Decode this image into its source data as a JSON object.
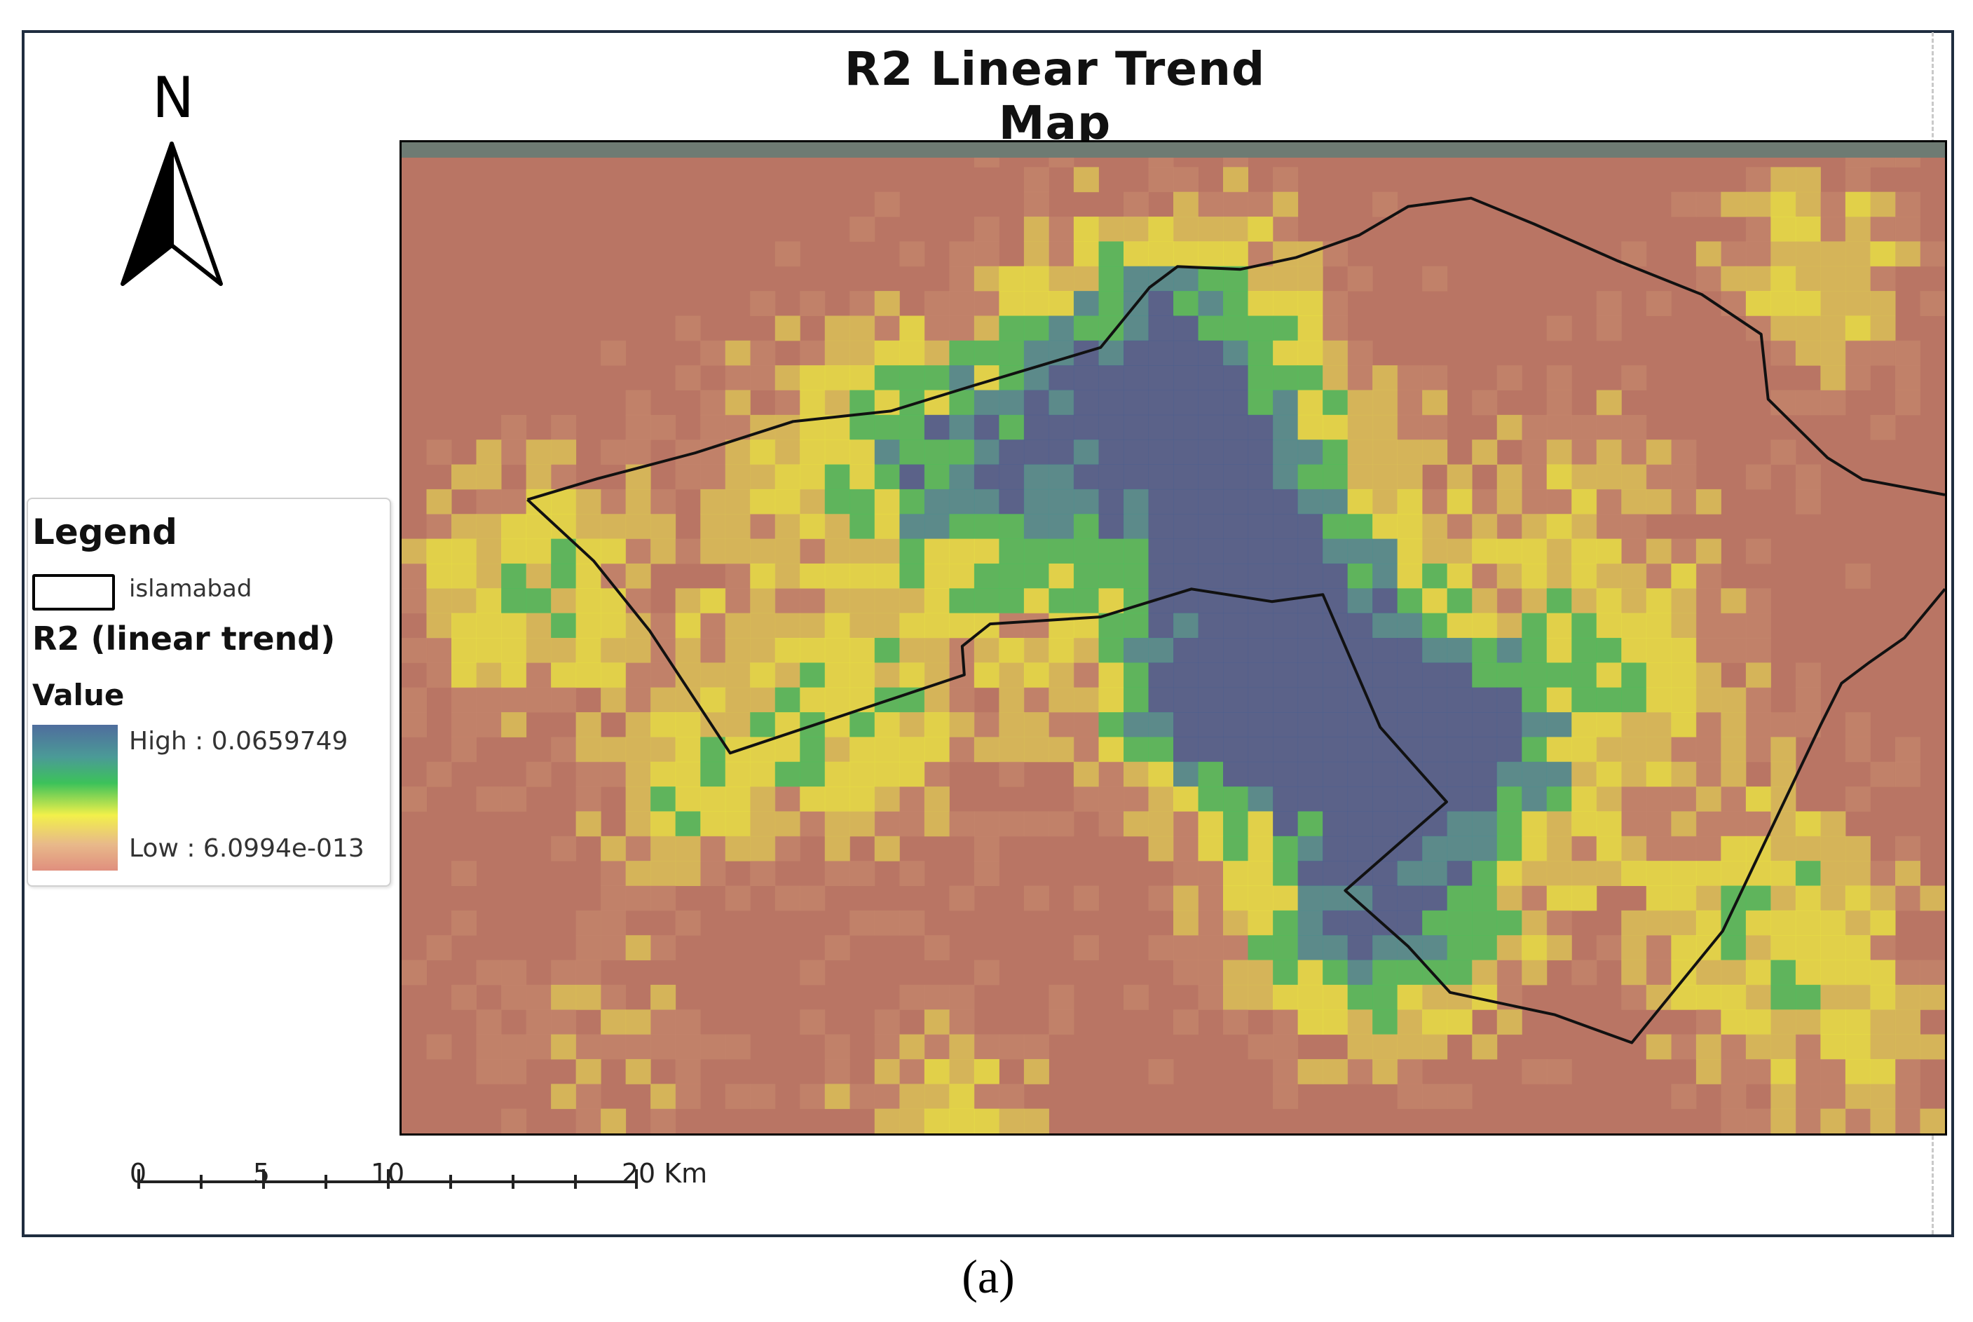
{
  "title": "R2 Linear Trend Map",
  "north_arrow": {
    "letter": "N",
    "icon": "north-arrow-icon"
  },
  "legend": {
    "title": "Legend",
    "boundary_label": "islamabad",
    "layer_label": "R2 (linear trend)",
    "value_label": "Value",
    "high_label": "High : 0.0659749",
    "low_label": "Low : 6.0994e-013",
    "high_value": 0.0659749,
    "low_value": 6.0994e-13,
    "ramp_colors": [
      "#4f6d9d",
      "#4b9a97",
      "#3cc25a",
      "#f2f04a",
      "#e8b98a",
      "#e08f7e"
    ]
  },
  "scale_bar": {
    "ticks": [
      "0",
      "5",
      "10",
      "20 Km"
    ]
  },
  "caption": "(a)",
  "colors": {
    "background_raster": "#b97564",
    "low": "#c98a6e",
    "mid_low": "#d9bf57",
    "mid": "#e8e044",
    "mid_high": "#4fbf5a",
    "high": "#4b8e90",
    "max": "#4a5f8f",
    "boundary": "#111111",
    "frame": "#1f2d3f"
  }
}
